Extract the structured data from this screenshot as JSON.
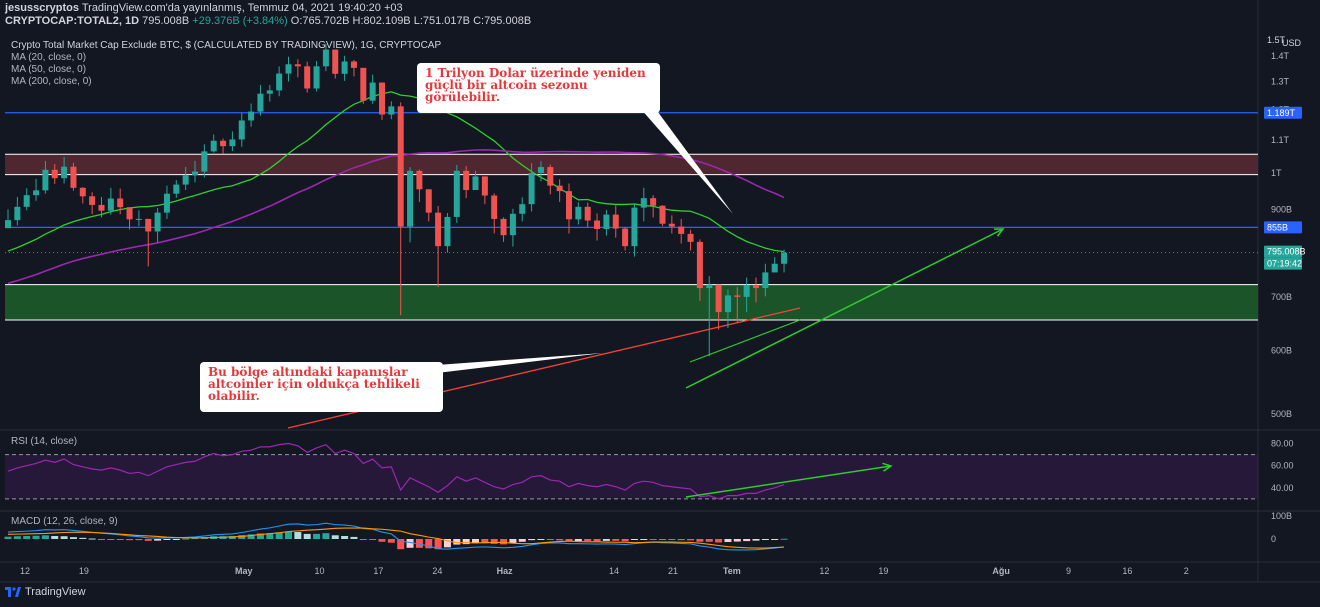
{
  "header": {
    "author": "jesusscryptos",
    "published": "TradingView.com'da yayınlanmış, Temmuz 04, 2021 19:40:20 +03",
    "ticker_line": {
      "symbol": "CRYPTOCAP:TOTAL2, 1D",
      "last": "795.008B",
      "change": "+29.376B (+3.84%)",
      "open": "O:765.702B",
      "high": "H:802.109B",
      "low": "L:751.017B",
      "close": "C:795.008B"
    }
  },
  "chart_title": "Crypto Total Market Cap Exclude BTC, $ (CALCULATED BY TRADINGVIEW), 1G, CRYPTOCAP",
  "indicators": [
    "MA (20, close, 0)",
    "MA (50, close, 0)",
    "MA (200, close, 0)"
  ],
  "rsi_label": "RSI (14, close)",
  "macd_label": "MACD (12, 26, close, 9)",
  "callouts": {
    "top": "1 Trilyon Dolar üzerinde yeniden güçlü bir altcoin sezonu görülebilir.",
    "bottom": "Bu bölge altındaki kapanışlar altcoinler için oldukça tehlikeli olabilir."
  },
  "footer": {
    "brand": "TradingView"
  },
  "colors": {
    "background": "#131722",
    "up": "#26a69a",
    "down": "#ef5350",
    "ma20": "#2ed12e",
    "ma50": "#9c27b0",
    "ma200": "#f44336",
    "level_line": "#2962ff",
    "red_zone": "#5b2a33",
    "green_zone": "#1e5b2a",
    "annotation_arrow": "#2ecc2e",
    "callout_text": "#e5383b"
  },
  "chart_data": {
    "type": "candlestick",
    "price_axis": {
      "unit": "USD",
      "ticks": [
        "1.4T",
        "1.3T",
        "1.2T",
        "1.1T",
        "1T",
        "900B",
        "800B",
        "700B",
        "600B",
        "500B"
      ],
      "tick_values": [
        1400,
        1300,
        1200,
        1100,
        1000,
        900,
        800,
        700,
        600,
        500
      ],
      "range_billions": [
        480,
        1500
      ],
      "top_label": "1.5T"
    },
    "time_axis": {
      "labels": [
        "12",
        "19",
        "May",
        "10",
        "17",
        "24",
        "Haz",
        "14",
        "21",
        "Tem",
        "12",
        "19",
        "Ağu",
        "9",
        "16",
        "2"
      ],
      "label_day_index": [
        0,
        7,
        26,
        35,
        42,
        49,
        57,
        70,
        77,
        84,
        95,
        102,
        116,
        124,
        131,
        138
      ],
      "start_date": "2021-04-12",
      "bars": 84
    },
    "price_labels": {
      "level_upper": "1.189T",
      "level_lower": "855B",
      "last": "795.008B",
      "countdown": "07:19:42"
    },
    "levels_billions": {
      "blue_upper": 1189,
      "blue_lower": 855
    },
    "zones_billions": {
      "red_zone": [
        995,
        1055
      ],
      "green_zone": [
        655,
        725
      ]
    },
    "closes_billions": [
      873,
      907,
      938,
      951,
      1009,
      985,
      1018,
      958,
      935,
      912,
      897,
      929,
      906,
      875,
      876,
      845,
      892,
      942,
      967,
      993,
      1004,
      1064,
      1097,
      1080,
      1101,
      1163,
      1193,
      1256,
      1268,
      1331,
      1367,
      1359,
      1275,
      1359,
      1426,
      1330,
      1378,
      1353,
      1231,
      1297,
      1183,
      1211,
      857,
      1006,
      954,
      892,
      810,
      881,
      1006,
      952,
      990,
      937,
      876,
      836,
      889,
      914,
      1000,
      1017,
      964,
      949,
      875,
      907,
      872,
      851,
      887,
      852,
      810,
      905,
      930,
      910,
      864,
      857,
      839,
      820,
      718,
      725,
      670,
      703,
      700,
      724,
      718,
      751,
      770,
      795
    ],
    "highs_billions": [
      900,
      933,
      957,
      983,
      1035,
      1026,
      1047,
      1030,
      960,
      946,
      933,
      958,
      956,
      906,
      898,
      872,
      904,
      964,
      980,
      1017,
      1035,
      1086,
      1117,
      1104,
      1127,
      1188,
      1221,
      1288,
      1288,
      1359,
      1397,
      1387,
      1377,
      1380,
      1450,
      1410,
      1401,
      1384,
      1299,
      1327,
      1297,
      1229,
      1225,
      1017,
      1010,
      954,
      909,
      891,
      1023,
      1020,
      1006,
      990,
      943,
      880,
      902,
      932,
      1028,
      1034,
      1024,
      982,
      970,
      919,
      918,
      890,
      899,
      911,
      856,
      916,
      958,
      938,
      911,
      885,
      876,
      849,
      826,
      743,
      724,
      715,
      720,
      740,
      740,
      770,
      785,
      802
    ],
    "lows_billions": [
      854,
      860,
      898,
      923,
      942,
      969,
      970,
      950,
      916,
      888,
      880,
      887,
      888,
      850,
      858,
      764,
      818,
      876,
      931,
      952,
      973,
      987,
      1060,
      1057,
      1065,
      1078,
      1142,
      1179,
      1228,
      1247,
      1301,
      1317,
      1260,
      1264,
      1340,
      1312,
      1303,
      1320,
      1220,
      1220,
      1165,
      1167,
      664,
      819,
      920,
      870,
      720,
      795,
      866,
      930,
      954,
      914,
      840,
      820,
      809,
      870,
      895,
      976,
      940,
      920,
      840,
      862,
      855,
      823,
      835,
      830,
      800,
      786,
      870,
      880,
      858,
      840,
      816,
      800,
      692,
      590,
      637,
      640,
      650,
      670,
      689,
      701,
      751,
      751
    ],
    "rsi": {
      "axis_ticks": [
        80,
        60,
        40
      ],
      "upper_band": 70,
      "lower_band": 30,
      "values": [
        55,
        58,
        60,
        62,
        65,
        63,
        66,
        61,
        59,
        57,
        56,
        58,
        56,
        53,
        54,
        51,
        55,
        59,
        61,
        63,
        64,
        68,
        71,
        69,
        70,
        73,
        74,
        77,
        77,
        79,
        80,
        78,
        72,
        76,
        79,
        71,
        74,
        71,
        62,
        66,
        58,
        59,
        38,
        49,
        45,
        41,
        36,
        42,
        50,
        46,
        49,
        45,
        41,
        39,
        43,
        45,
        50,
        51,
        47,
        46,
        41,
        44,
        42,
        41,
        43,
        41,
        38,
        44,
        46,
        45,
        42,
        41,
        40,
        39,
        32,
        33,
        30,
        33,
        33,
        35,
        35,
        38,
        40,
        43
      ]
    },
    "macd": {
      "axis_ticks": [
        "100B",
        "0"
      ],
      "axis_values": [
        100,
        0
      ],
      "histogram": [
        10,
        12,
        13,
        14,
        16,
        13,
        12,
        8,
        5,
        2,
        -1,
        -2,
        -3,
        -5,
        -5,
        -8,
        -7,
        -3,
        -1,
        2,
        4,
        8,
        12,
        12,
        13,
        17,
        20,
        24,
        25,
        29,
        32,
        30,
        22,
        22,
        25,
        16,
        13,
        9,
        -2,
        -2,
        -12,
        -16,
        -44,
        -38,
        -38,
        -40,
        -44,
        -36,
        -24,
        -22,
        -18,
        -18,
        -21,
        -23,
        -18,
        -12,
        -5,
        -2,
        -4,
        -6,
        -11,
        -9,
        -9,
        -10,
        -8,
        -8,
        -10,
        -4,
        -1,
        0,
        -3,
        -4,
        -5,
        -6,
        -12,
        -12,
        -15,
        -13,
        -11,
        -9,
        -7,
        -4,
        -2,
        1
      ],
      "macd_line": [
        30,
        32,
        34,
        36,
        40,
        39,
        40,
        37,
        33,
        29,
        25,
        22,
        18,
        13,
        10,
        5,
        4,
        5,
        5,
        7,
        9,
        13,
        18,
        20,
        22,
        28,
        35,
        43,
        48,
        56,
        64,
        65,
        60,
        62,
        68,
        62,
        60,
        56,
        45,
        42,
        30,
        22,
        -10,
        -15,
        -22,
        -30,
        -42,
        -44,
        -40,
        -38,
        -35,
        -34,
        -36,
        -38,
        -36,
        -32,
        -25,
        -19,
        -17,
        -17,
        -20,
        -20,
        -21,
        -22,
        -21,
        -22,
        -24,
        -20,
        -16,
        -14,
        -16,
        -17,
        -19,
        -21,
        -30,
        -35,
        -43,
        -46,
        -47,
        -47,
        -46,
        -43,
        -39,
        -34
      ],
      "signal_line": [
        20,
        21,
        22,
        23,
        24,
        26,
        28,
        29,
        29,
        28,
        26,
        24,
        21,
        18,
        15,
        13,
        11,
        8,
        6,
        5,
        5,
        5,
        6,
        8,
        9,
        11,
        15,
        19,
        23,
        27,
        32,
        35,
        38,
        40,
        43,
        46,
        47,
        47,
        47,
        44,
        42,
        38,
        34,
        23,
        16,
        8,
        2,
        -8,
        -16,
        -16,
        -17,
        -16,
        -15,
        -15,
        -18,
        -20,
        -20,
        -17,
        -13,
        -11,
        -9,
        -11,
        -12,
        -12,
        -13,
        -14,
        -14,
        -16,
        -15,
        -13,
        -13,
        -13,
        -14,
        -15,
        -18,
        -23,
        -28,
        -33,
        -36,
        -38,
        -39,
        -39,
        -37,
        -35
      ]
    }
  }
}
